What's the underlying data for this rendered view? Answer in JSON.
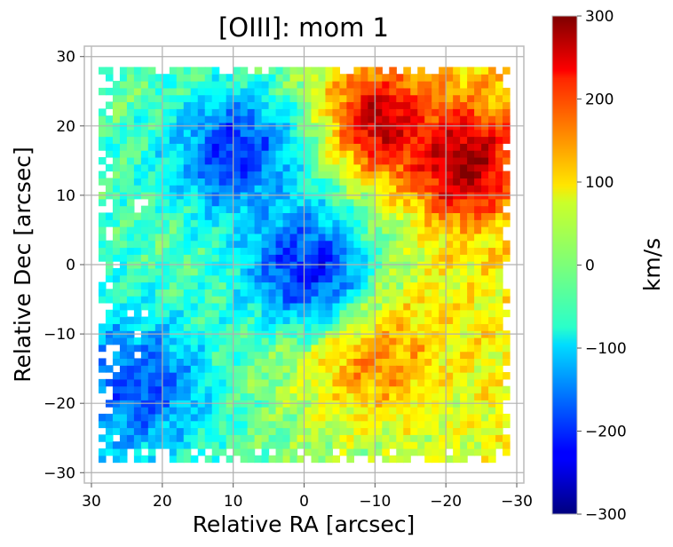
{
  "chart_data": {
    "type": "heatmap",
    "title": "[OIII]: mom 1",
    "xlabel": "Relative RA [arcsec]",
    "ylabel": "Relative Dec [arcsec]",
    "xlim": [
      31,
      -31
    ],
    "ylim": [
      -31.5,
      31.5
    ],
    "x_ticks": [
      30,
      20,
      10,
      0,
      -10,
      -20,
      -30
    ],
    "y_ticks": [
      30,
      20,
      10,
      0,
      -10,
      -20,
      -30
    ],
    "x_tick_labels": [
      "30",
      "20",
      "10",
      "0",
      "−10",
      "−20",
      "−30"
    ],
    "y_tick_labels": [
      "30",
      "20",
      "10",
      "0",
      "−10",
      "−20",
      "−30"
    ],
    "grid": true,
    "colormap": "jet",
    "colorbar": {
      "label": "km/s",
      "range": [
        -300,
        300
      ],
      "ticks": [
        300,
        200,
        100,
        0,
        -100,
        -200,
        -300
      ],
      "tick_labels": [
        "300",
        "200",
        "100",
        "0",
        "−100",
        "−200",
        "−300"
      ]
    },
    "data_extent": {
      "x": [
        29,
        -29
      ],
      "y": [
        -28.5,
        28.5
      ]
    },
    "velocity_features": [
      {
        "name": "receding lobe north-west",
        "x": -22,
        "y": 14,
        "velocity": 290
      },
      {
        "name": "receding clump north",
        "x": -10,
        "y": 20,
        "velocity": 270
      },
      {
        "name": "redshifted cone south",
        "x": -8,
        "y": -12,
        "velocity": 170
      },
      {
        "name": "approaching lobe north-east",
        "x": 10,
        "y": 16,
        "velocity": -200
      },
      {
        "name": "nucleus blue spot",
        "x": 0,
        "y": -1,
        "velocity": -210
      },
      {
        "name": "approaching south-east edge",
        "x": 24,
        "y": -18,
        "velocity": -180
      }
    ]
  }
}
